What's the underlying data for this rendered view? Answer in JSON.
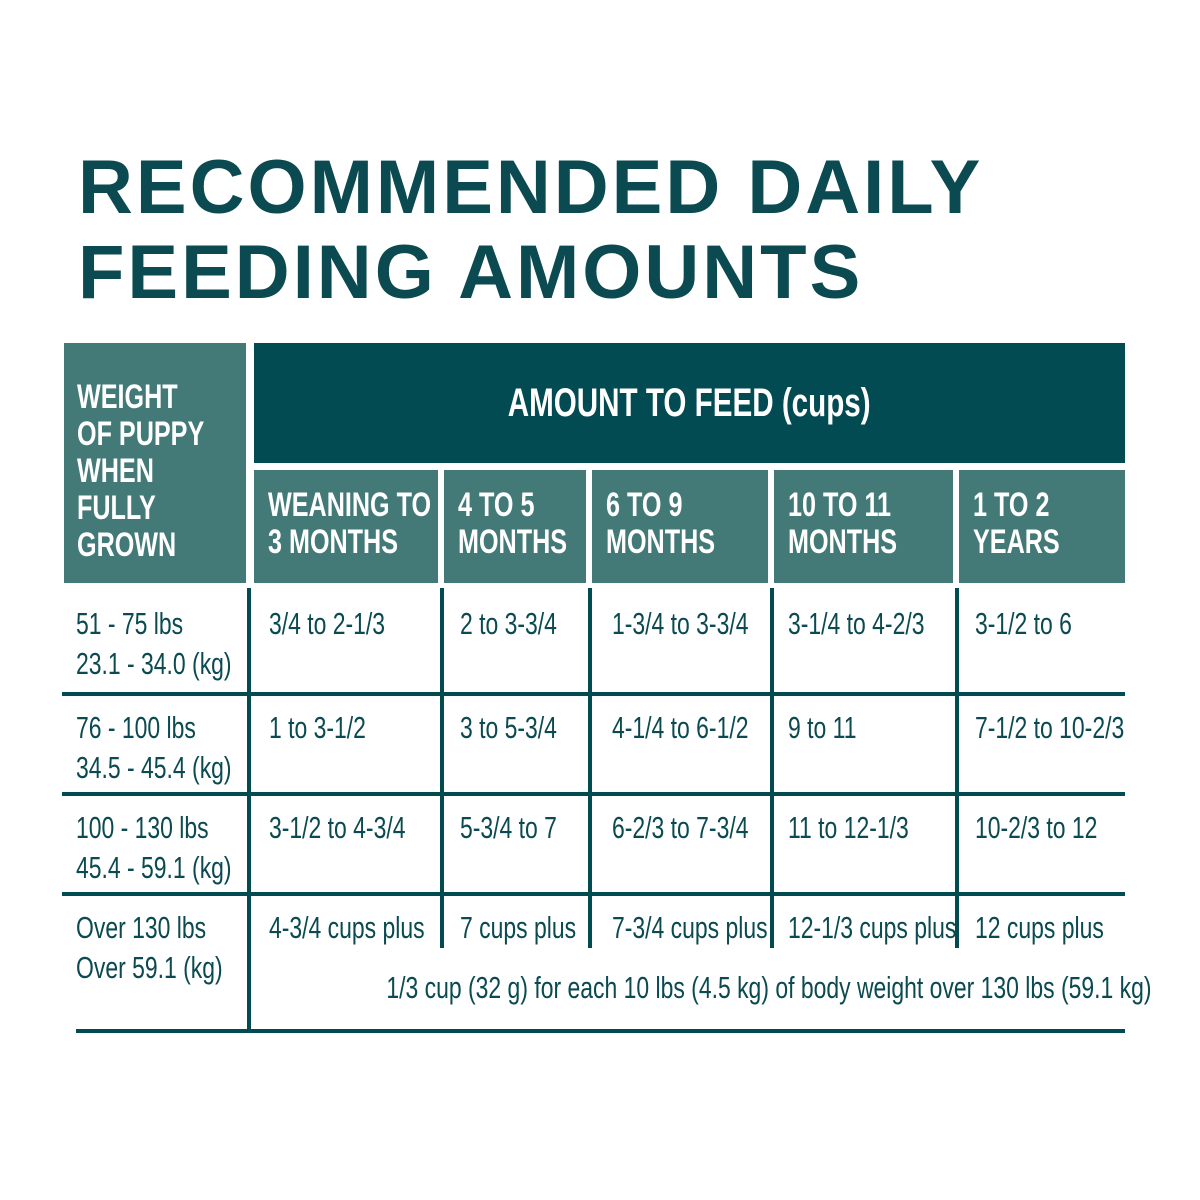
{
  "title": {
    "line1": "RECOMMENDED DAILY",
    "line2": "FEEDING AMOUNTS"
  },
  "colors": {
    "dark_teal": "#034b52",
    "mid_teal": "#437a78",
    "text": "#0a4a50"
  },
  "table": {
    "weight_header": [
      "WEIGHT",
      "OF PUPPY",
      "WHEN",
      "FULLY",
      "GROWN"
    ],
    "amount_header": "AMOUNT TO FEED (cups)",
    "age_headers": [
      [
        "WEANING TO",
        "3 MONTHS"
      ],
      [
        "4 TO 5",
        "MONTHS"
      ],
      [
        "6 TO 9",
        "MONTHS"
      ],
      [
        "10 TO 11",
        "MONTHS"
      ],
      [
        "1 TO 2",
        "YEARS"
      ]
    ],
    "rows": [
      {
        "weight": [
          "51 - 75 lbs",
          "23.1 - 34.0 (kg)"
        ],
        "amounts": [
          "3/4 to 2-1/3",
          "2 to 3-3/4",
          "1-3/4 to 3-3/4",
          "3-1/4 to 4-2/3",
          "3-1/2 to 6"
        ]
      },
      {
        "weight": [
          "76 - 100 lbs",
          "34.5  - 45.4 (kg)"
        ],
        "amounts": [
          "1 to 3-1/2",
          "3 to 5-3/4",
          "4-1/4 to 6-1/2",
          "9 to 11",
          "7-1/2 to 10-2/3"
        ]
      },
      {
        "weight": [
          "100 - 130 lbs",
          "45.4 - 59.1 (kg)"
        ],
        "amounts": [
          "3-1/2 to 4-3/4",
          "5-3/4 to 7",
          "6-2/3 to 7-3/4",
          "11 to 12-1/3",
          "10-2/3 to 12"
        ]
      },
      {
        "weight": [
          "Over 130 lbs",
          "Over 59.1 (kg)"
        ],
        "amounts": [
          "4-3/4 cups plus",
          "7 cups plus",
          "7-3/4 cups plus",
          "12-1/3 cups plus",
          "12 cups plus"
        ]
      }
    ],
    "note": "1/3 cup (32 g) for each 10 lbs (4.5 kg) of body weight over 130 lbs (59.1 kg)"
  }
}
